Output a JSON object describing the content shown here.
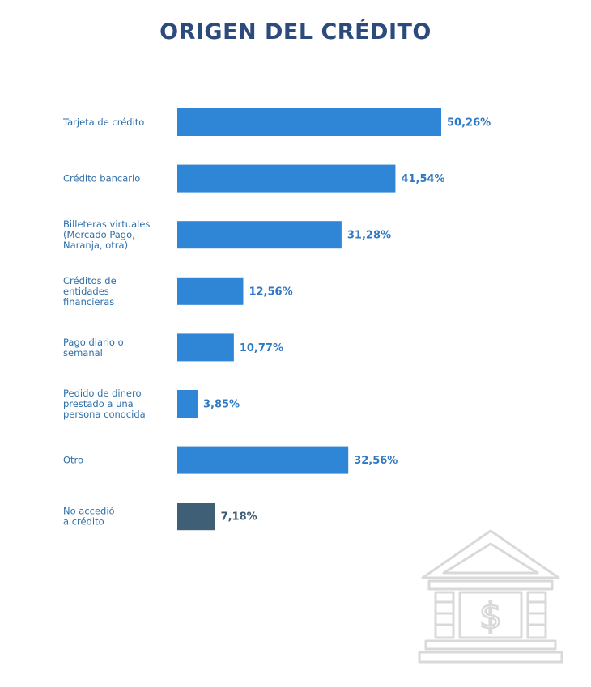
{
  "title": "ORIGEN DEL CRÉDITO",
  "colors": {
    "title": "#2c4a7c",
    "bar": "#2f86d6",
    "bar_highlight": "#3e5f76",
    "category_text": "#2f6fa8",
    "value_text": "#2f78c4",
    "icon": "#d9d9d9"
  },
  "decoration": {
    "icon": "bank-dollar-icon"
  },
  "chart_data": {
    "type": "bar",
    "orientation": "horizontal",
    "title": "ORIGEN DEL CRÉDITO",
    "xlabel": "",
    "ylabel": "",
    "xlim": [
      0,
      55
    ],
    "grid": false,
    "legend": "none",
    "unit": "%",
    "categories": [
      [
        "Tarjeta de crédito"
      ],
      [
        "Crédito bancario"
      ],
      [
        "Billeteras virtuales",
        "(Mercado Pago,",
        "Naranja, otra)"
      ],
      [
        "Créditos de",
        "entidades",
        "financieras"
      ],
      [
        "Pago diario o",
        "semanal"
      ],
      [
        "Pedido de dinero",
        "prestado a una",
        "persona conocida"
      ],
      [
        "Otro"
      ],
      [
        "No accedió",
        "a crédito"
      ]
    ],
    "values": [
      50.26,
      41.54,
      31.28,
      12.56,
      10.77,
      3.85,
      32.56,
      7.18
    ],
    "value_labels": [
      "50,26%",
      "41,54%",
      "31,28%",
      "12,56%",
      "10,77%",
      "3,85%",
      "32,56%",
      "7,18%"
    ],
    "highlight_index": 7
  }
}
